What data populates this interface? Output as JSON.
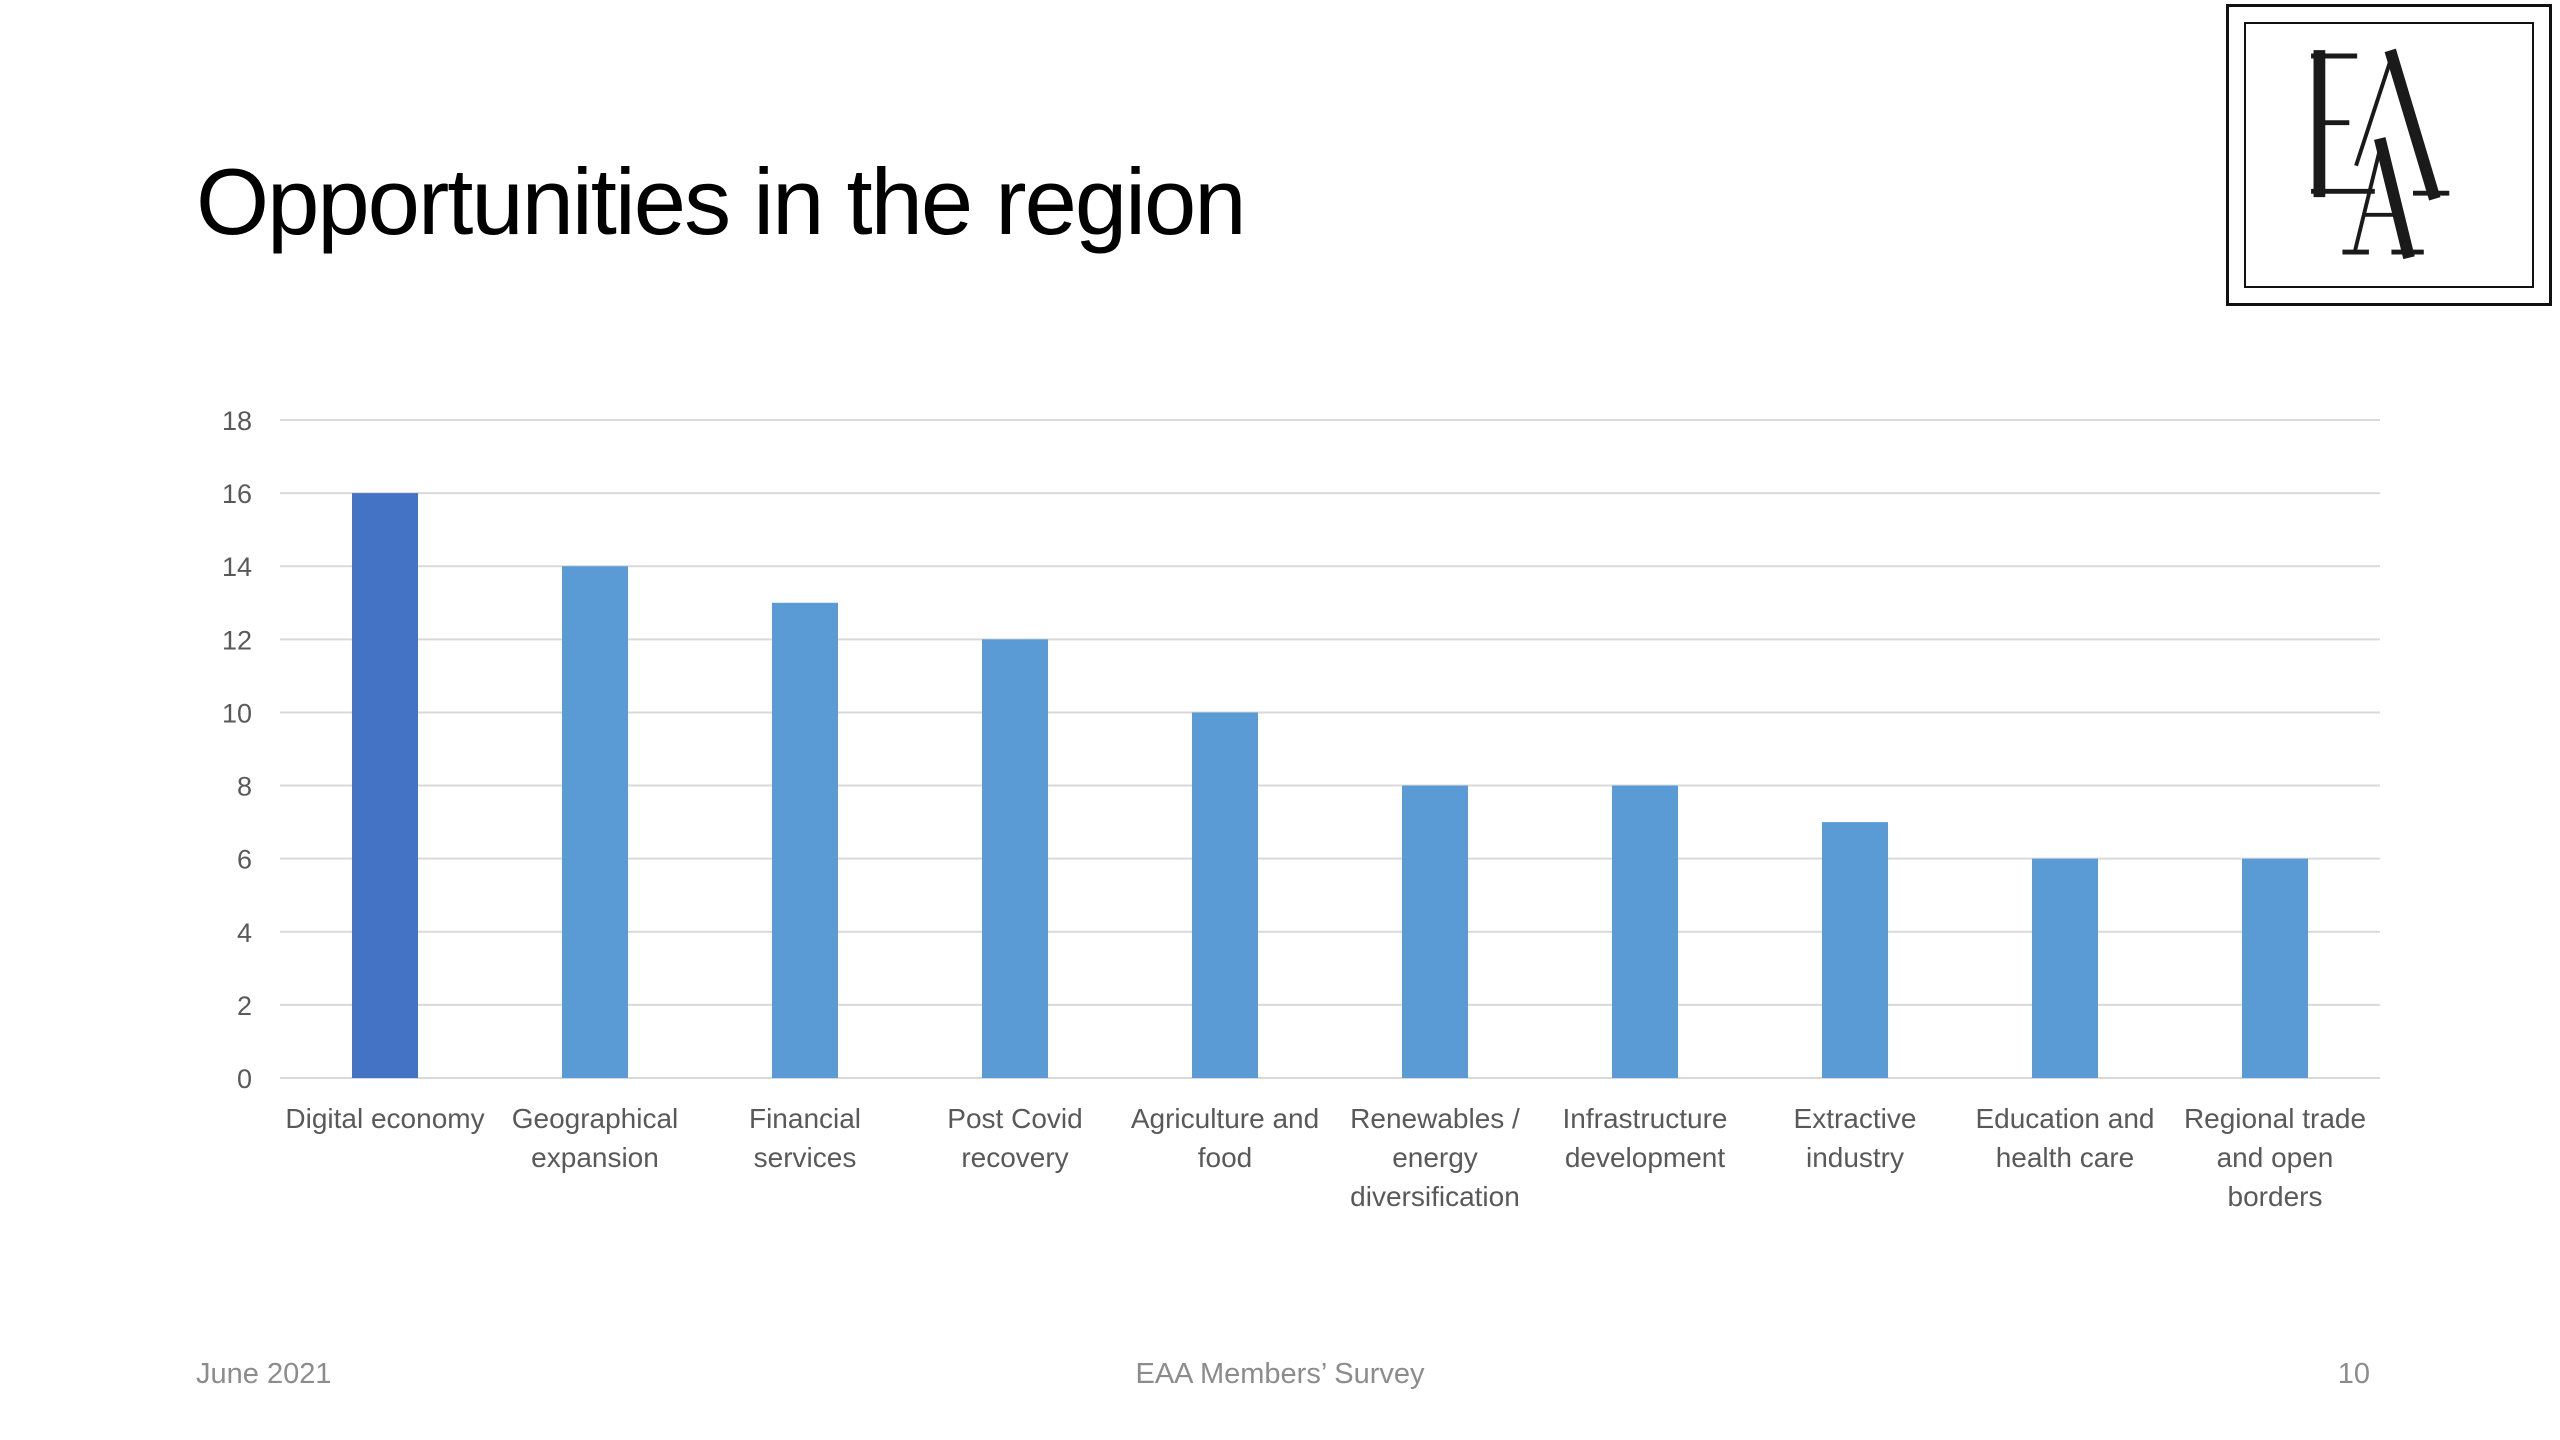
{
  "slide": {
    "title": "Opportunities in the region"
  },
  "logo": {
    "text": "EAA",
    "name": "eaa-logo"
  },
  "footer": {
    "date": "June 2021",
    "source": "EAA Members’ Survey",
    "page": "10"
  },
  "chart_data": {
    "type": "bar",
    "title": "",
    "xlabel": "",
    "ylabel": "",
    "ylim": [
      0,
      18
    ],
    "y_ticks": [
      "0",
      "2",
      "4",
      "6",
      "8",
      "10",
      "12",
      "14",
      "16",
      "18"
    ],
    "grid": true,
    "categories": [
      [
        "Digital economy"
      ],
      [
        "Geographical",
        "expansion"
      ],
      [
        "Financial",
        "services"
      ],
      [
        "Post Covid",
        "recovery"
      ],
      [
        "Agriculture and",
        "food"
      ],
      [
        "Renewables /",
        "energy",
        "diversification"
      ],
      [
        "Infrastructure",
        "development"
      ],
      [
        "Extractive",
        "industry"
      ],
      [
        "Education and",
        "health care"
      ],
      [
        "Regional trade",
        "and open",
        "borders"
      ]
    ],
    "values": [
      16,
      14,
      13,
      12,
      10,
      8,
      8,
      7,
      6,
      6
    ],
    "colors": {
      "highlight": "#4472c4",
      "bar": "#5b9bd5",
      "grid": "#d9d9d9",
      "axis_text": "#595959"
    },
    "highlight_index": 0
  }
}
